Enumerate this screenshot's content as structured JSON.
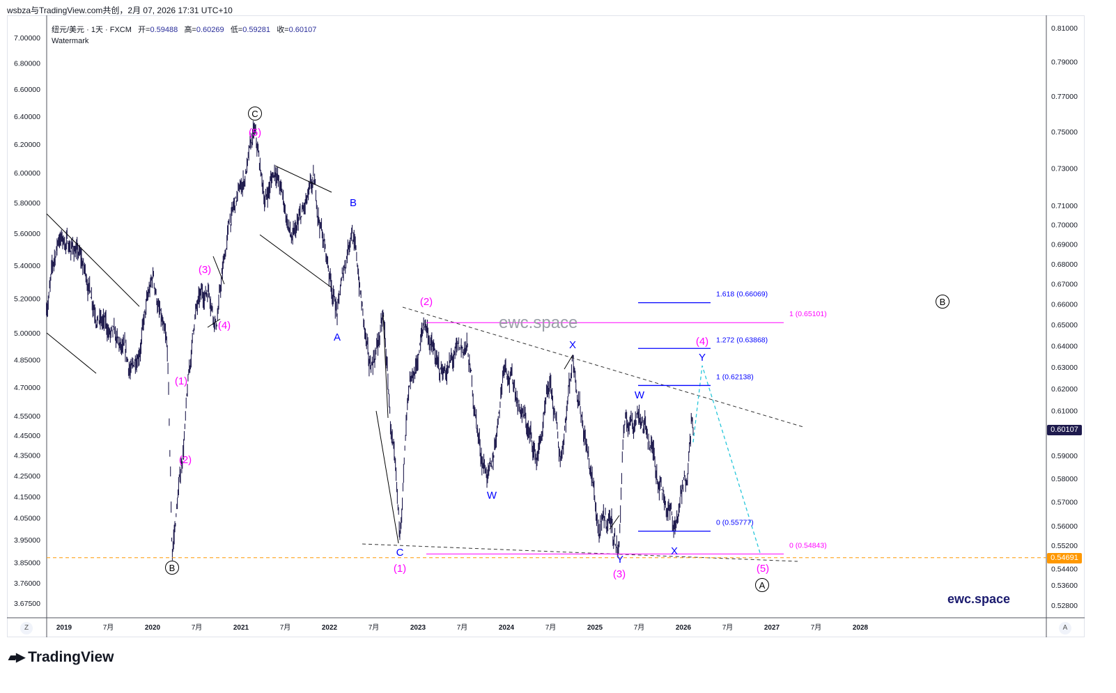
{
  "header": {
    "credit": "wsbza与TradingView.com共创，2月 07, 2026 17:31 UTC+10"
  },
  "legend": {
    "symbol": "纽元/美元 · 1天 · FXCM",
    "open_label": "开=",
    "open": "0.59488",
    "high_label": "高=",
    "high": "0.60269",
    "low_label": "低=",
    "low": "0.59281",
    "close_label": "收=",
    "close": "0.60107",
    "indicator": "Watermark"
  },
  "watermarks": {
    "center": "ewc.space",
    "corner": "ewc.space"
  },
  "brand": {
    "logo_text": "TradingView",
    "logo_icon": "tradingview-logo-icon"
  },
  "axis_buttons": {
    "left": "Z",
    "right": "A"
  },
  "price_tags": {
    "last": "0.60107",
    "last_color": "#1e1a4d",
    "line": "0.54691",
    "line_color": "#ff9800"
  },
  "chart_data": {
    "type": "ohlc",
    "title": "纽元/美元 · 1天 · FXCM",
    "yscale": "log",
    "ylim": [
      0.522,
      0.815
    ],
    "right_ticks": [
      "0.81000",
      "0.79000",
      "0.77000",
      "0.75000",
      "0.73000",
      "0.71000",
      "0.70000",
      "0.69000",
      "0.68000",
      "0.67000",
      "0.66000",
      "0.65000",
      "0.64000",
      "0.63000",
      "0.62000",
      "0.61000",
      "0.59000",
      "0.58000",
      "0.57000",
      "0.56000",
      "0.55200",
      "0.54400",
      "0.53600",
      "0.52800"
    ],
    "left_ticks": [
      "7.00000",
      "6.80000",
      "6.60000",
      "6.40000",
      "6.20000",
      "6.00000",
      "5.80000",
      "5.60000",
      "5.40000",
      "5.20000",
      "5.00000",
      "4.85000",
      "4.70000",
      "4.55000",
      "4.45000",
      "4.35000",
      "4.25000",
      "4.15000",
      "4.05000",
      "3.95000",
      "3.85000",
      "3.76000",
      "3.67500"
    ],
    "left_ylim": [
      3.675,
      7.0
    ],
    "x_ticks": [
      {
        "t": 2019,
        "label": "2019",
        "bold": true
      },
      {
        "t": 2019.5,
        "label": "7月"
      },
      {
        "t": 2020,
        "label": "2020",
        "bold": true
      },
      {
        "t": 2020.5,
        "label": "7月"
      },
      {
        "t": 2021,
        "label": "2021",
        "bold": true
      },
      {
        "t": 2021.5,
        "label": "7月"
      },
      {
        "t": 2022,
        "label": "2022",
        "bold": true
      },
      {
        "t": 2022.5,
        "label": "7月"
      },
      {
        "t": 2023,
        "label": "2023",
        "bold": true
      },
      {
        "t": 2023.5,
        "label": "7月"
      },
      {
        "t": 2024,
        "label": "2024",
        "bold": true
      },
      {
        "t": 2024.5,
        "label": "7月"
      },
      {
        "t": 2025,
        "label": "2025",
        "bold": true
      },
      {
        "t": 2025.5,
        "label": "7月"
      },
      {
        "t": 2026,
        "label": "2026",
        "bold": true
      },
      {
        "t": 2026.5,
        "label": "7月"
      },
      {
        "t": 2027,
        "label": "2027",
        "bold": true
      },
      {
        "t": 2027.5,
        "label": "7月"
      },
      {
        "t": 2028,
        "label": "2028",
        "bold": true
      }
    ],
    "price_path": [
      [
        2018.8,
        0.659
      ],
      [
        2018.94,
        0.694
      ],
      [
        2019.14,
        0.687
      ],
      [
        2019.42,
        0.652
      ],
      [
        2019.77,
        0.626
      ],
      [
        2020.01,
        0.673
      ],
      [
        2020.17,
        0.632
      ],
      [
        2020.22,
        0.547
      ],
      [
        2020.34,
        0.591
      ],
      [
        2020.48,
        0.656
      ],
      [
        2020.64,
        0.669
      ],
      [
        2020.72,
        0.652
      ],
      [
        2020.87,
        0.701
      ],
      [
        2021.03,
        0.723
      ],
      [
        2021.15,
        0.748
      ],
      [
        2021.27,
        0.712
      ],
      [
        2021.39,
        0.731
      ],
      [
        2021.58,
        0.69
      ],
      [
        2021.82,
        0.719
      ],
      [
        2021.98,
        0.68
      ],
      [
        2022.09,
        0.656
      ],
      [
        2022.25,
        0.701
      ],
      [
        2022.33,
        0.673
      ],
      [
        2022.45,
        0.626
      ],
      [
        2022.61,
        0.652
      ],
      [
        2022.69,
        0.604
      ],
      [
        2022.79,
        0.553
      ],
      [
        2022.88,
        0.607
      ],
      [
        2023.08,
        0.652
      ],
      [
        2023.24,
        0.626
      ],
      [
        2023.55,
        0.639
      ],
      [
        2023.71,
        0.591
      ],
      [
        2023.83,
        0.579
      ],
      [
        2023.98,
        0.636
      ],
      [
        2024.34,
        0.588
      ],
      [
        2024.5,
        0.619
      ],
      [
        2024.61,
        0.588
      ],
      [
        2024.75,
        0.636
      ],
      [
        2024.89,
        0.6
      ],
      [
        2025.05,
        0.556
      ],
      [
        2025.17,
        0.564
      ],
      [
        2025.27,
        0.549
      ],
      [
        2025.32,
        0.6
      ],
      [
        2025.5,
        0.611
      ],
      [
        2025.68,
        0.588
      ],
      [
        2025.9,
        0.559
      ],
      [
        2026.03,
        0.579
      ],
      [
        2026.09,
        0.609
      ],
      [
        2026.11,
        0.601
      ]
    ],
    "last_price": 0.60107,
    "horizontal_line": 0.54691,
    "fib_blue": [
      {
        "label": "1.618 (0.66069)",
        "value": 0.66069
      },
      {
        "label": "1.272 (0.63868)",
        "value": 0.63868
      },
      {
        "label": "1 (0.62138)",
        "value": 0.62138
      },
      {
        "label": "0 (0.55777)",
        "value": 0.55777
      }
    ],
    "fib_magenta": [
      {
        "label": "1 (0.65101)",
        "value": 0.65101
      },
      {
        "label": "0 (0.54843)",
        "value": 0.54843
      }
    ],
    "wave_labels": [
      {
        "text": "C",
        "circled": true,
        "color": "#000000"
      },
      {
        "text": "(5)",
        "color": "#ff00ff"
      },
      {
        "text": "B",
        "color": "#0000ff"
      },
      {
        "text": "A",
        "color": "#0000ff"
      },
      {
        "text": "(1)",
        "color": "#ff00ff"
      },
      {
        "text": "(2)",
        "color": "#ff00ff"
      },
      {
        "text": "(3)",
        "color": "#ff00ff"
      },
      {
        "text": "(4)",
        "color": "#ff00ff"
      },
      {
        "text": "B",
        "circled": true,
        "color": "#000000"
      },
      {
        "text": "C",
        "color": "#0000ff"
      },
      {
        "text": "(1)",
        "color": "#ff00ff"
      },
      {
        "text": "(2)",
        "color": "#ff00ff"
      },
      {
        "text": "W",
        "color": "#0000ff"
      },
      {
        "text": "X",
        "color": "#0000ff"
      },
      {
        "text": "W",
        "color": "#0000ff"
      },
      {
        "text": "Y",
        "color": "#0000ff"
      },
      {
        "text": "(3)",
        "color": "#ff00ff"
      },
      {
        "text": "X",
        "color": "#0000ff"
      },
      {
        "text": "Y",
        "color": "#0000ff"
      },
      {
        "text": "(4)",
        "color": "#ff00ff"
      },
      {
        "text": "(5)",
        "color": "#ff00ff"
      },
      {
        "text": "A",
        "circled": true,
        "color": "#000000"
      },
      {
        "text": "B",
        "circled": true,
        "color": "#000000"
      }
    ]
  }
}
